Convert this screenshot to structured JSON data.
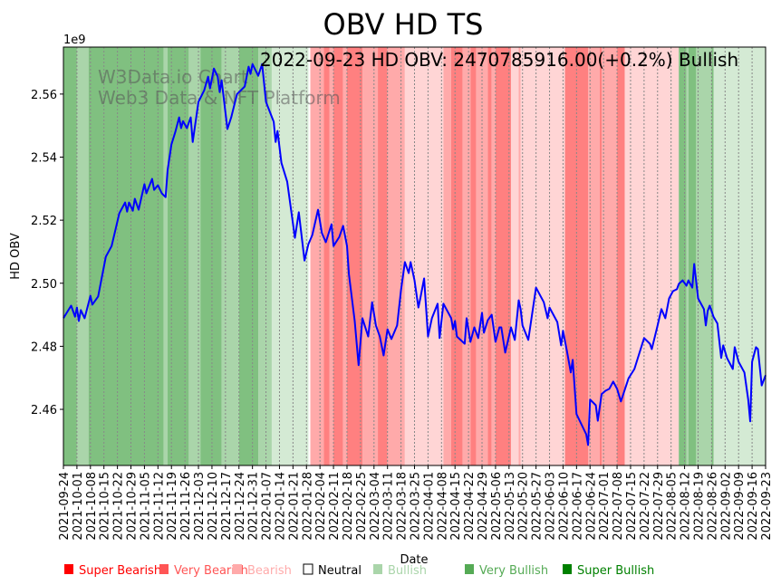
{
  "chart_data": {
    "type": "line",
    "title": "OBV HD TS",
    "annotation": "2022-09-23 HD OBV: 2470785916.00(+0.2%) Bullish",
    "watermark": [
      "W3Data.io Chart",
      "Web3 Data & NFT Platform"
    ],
    "xlabel": "Date",
    "ylabel": "HD OBV",
    "y_scale_label": "1e9",
    "x_unit": "days since 2021-09-24",
    "xlim": [
      0,
      364
    ],
    "ylim": [
      2.4422,
      2.5749
    ],
    "yticks": [
      2.46,
      2.48,
      2.5,
      2.52,
      2.54,
      2.56
    ],
    "ytick_labels": [
      "2.46",
      "2.48",
      "2.50",
      "2.52",
      "2.54",
      "2.56"
    ],
    "xtick_interval_days": 7,
    "xtick_labels": [
      "2021-09-24",
      "2021-10-01",
      "2021-10-08",
      "2021-10-15",
      "2021-10-22",
      "2021-10-29",
      "2021-11-05",
      "2021-11-12",
      "2021-11-19",
      "2021-11-26",
      "2021-12-03",
      "2021-12-10",
      "2021-12-17",
      "2021-12-24",
      "2021-12-31",
      "2022-01-07",
      "2022-01-14",
      "2022-01-21",
      "2022-01-28",
      "2022-02-04",
      "2022-02-11",
      "2022-02-18",
      "2022-02-25",
      "2022-03-04",
      "2022-03-11",
      "2022-03-18",
      "2022-03-25",
      "2022-04-01",
      "2022-04-08",
      "2022-04-15",
      "2022-04-22",
      "2022-04-29",
      "2022-05-06",
      "2022-05-13",
      "2022-05-20",
      "2022-05-27",
      "2022-06-03",
      "2022-06-10",
      "2022-06-17",
      "2022-06-24",
      "2022-07-01",
      "2022-07-08",
      "2022-07-15",
      "2022-07-22",
      "2022-07-29",
      "2022-08-05",
      "2022-08-12",
      "2022-08-19",
      "2022-08-26",
      "2022-09-02",
      "2022-09-09",
      "2022-09-16",
      "2022-09-23"
    ],
    "grid": "vertical-dotted",
    "series": [
      {
        "name": "HD OBV",
        "color": "#0000ff",
        "x": [
          0,
          4,
          6,
          7,
          8,
          9,
          11,
          14,
          15,
          18,
          22,
          25,
          29,
          32,
          33,
          34,
          36,
          37,
          39,
          42,
          43,
          46,
          47,
          49,
          51,
          53,
          54,
          56,
          58,
          60,
          61,
          62,
          64,
          66,
          67,
          70,
          73,
          75,
          76,
          78,
          80,
          81,
          82,
          85,
          87,
          90,
          94,
          96,
          97,
          98,
          101,
          103,
          105,
          109,
          110,
          111,
          113,
          116,
          120,
          122,
          125,
          127,
          129,
          132,
          134,
          136,
          139,
          140,
          143,
          145,
          147,
          148,
          151,
          153,
          155,
          158,
          160,
          162,
          164,
          166,
          168,
          170,
          173,
          175,
          177,
          179,
          180,
          182,
          184,
          185,
          187,
          189,
          191,
          194,
          195,
          197,
          201,
          202,
          203,
          204,
          208,
          209,
          211,
          213,
          215,
          217,
          218,
          220,
          222,
          224,
          226,
          227,
          229,
          232,
          234,
          236,
          237,
          238,
          241,
          245,
          249,
          251,
          252,
          256,
          258,
          259,
          261,
          263,
          264,
          266,
          271,
          272,
          273,
          276,
          277,
          279,
          281,
          283,
          285,
          287,
          289,
          293,
          296,
          301,
          304,
          305,
          308,
          310,
          312,
          314,
          316,
          318,
          319,
          321,
          323,
          324,
          326,
          327,
          329,
          332,
          333,
          334,
          335,
          337,
          339,
          341,
          342,
          344,
          347,
          348,
          350,
          353,
          355,
          356,
          357,
          359,
          360,
          362,
          364
        ],
        "y": [
          2.4889,
          2.4929,
          2.4894,
          2.4923,
          2.488,
          2.4915,
          2.4889,
          2.496,
          2.4932,
          2.4958,
          2.5084,
          2.5118,
          2.5222,
          2.5256,
          2.5227,
          2.5256,
          2.523,
          2.5268,
          2.5233,
          2.5314,
          2.5285,
          2.5331,
          2.5296,
          2.5311,
          2.5285,
          2.5273,
          2.5359,
          2.544,
          2.548,
          2.5526,
          2.5492,
          2.5514,
          2.5492,
          2.5526,
          2.5448,
          2.5575,
          2.5612,
          2.5655,
          2.5618,
          2.5681,
          2.5655,
          2.5606,
          2.5644,
          2.5489,
          2.5526,
          2.56,
          2.5624,
          2.5687,
          2.5664,
          2.5695,
          2.5658,
          2.5695,
          2.5575,
          2.5512,
          2.5448,
          2.5483,
          2.5382,
          2.5322,
          2.5144,
          2.5225,
          2.5072,
          2.5124,
          2.5153,
          2.5233,
          2.5159,
          2.513,
          2.5187,
          2.5118,
          2.5147,
          2.5182,
          2.5118,
          2.5029,
          2.488,
          2.474,
          2.4889,
          2.4831,
          2.494,
          2.4866,
          2.4831,
          2.4771,
          2.4854,
          2.4823,
          2.4866,
          2.4978,
          2.5067,
          2.5032,
          2.5067,
          2.5009,
          2.4923,
          2.4952,
          2.5015,
          2.4831,
          2.4889,
          2.4935,
          2.4826,
          2.4935,
          2.4889,
          2.4854,
          2.488,
          2.4831,
          2.4808,
          2.4889,
          2.4814,
          2.486,
          2.4826,
          2.4906,
          2.4843,
          2.4883,
          2.49,
          2.4814,
          2.486,
          2.486,
          2.478,
          2.486,
          2.482,
          2.4946,
          2.4918,
          2.4866,
          2.482,
          2.4986,
          2.494,
          2.4889,
          2.4923,
          2.4877,
          2.4803,
          2.4849,
          2.4785,
          2.4717,
          2.4757,
          2.4585,
          2.4521,
          2.4487,
          2.4631,
          2.4613,
          2.4564,
          2.4648,
          2.4659,
          2.4665,
          2.4688,
          2.4665,
          2.4625,
          2.4699,
          2.4728,
          2.4826,
          2.4808,
          2.4791,
          2.4866,
          2.4918,
          2.4889,
          2.4952,
          2.4975,
          2.4981,
          2.4998,
          2.5009,
          2.4992,
          2.5009,
          2.4986,
          2.5061,
          2.4952,
          2.4918,
          2.4866,
          2.4912,
          2.4929,
          2.4894,
          2.4872,
          2.4763,
          2.4803,
          2.4763,
          2.4728,
          2.4797,
          2.4751,
          2.4717,
          2.4631,
          2.4562,
          2.4751,
          2.4797,
          2.4791,
          2.4676,
          2.4708
        ]
      }
    ],
    "sentiment_bands": [
      [
        0,
        7,
        "super_bullish"
      ],
      [
        7,
        13,
        "very_bullish"
      ],
      [
        13,
        52,
        "super_bullish"
      ],
      [
        52,
        54,
        "very_bullish"
      ],
      [
        54,
        65,
        "super_bullish"
      ],
      [
        65,
        71,
        "very_bullish"
      ],
      [
        71,
        82,
        "super_bullish"
      ],
      [
        82,
        91,
        "very_bullish"
      ],
      [
        91,
        101,
        "super_bullish"
      ],
      [
        101,
        108,
        "very_bullish"
      ],
      [
        108,
        127,
        "bullish"
      ],
      [
        128,
        135,
        "very_bearish"
      ],
      [
        135,
        138,
        "super_bearish"
      ],
      [
        138,
        140,
        "very_bearish"
      ],
      [
        140,
        145,
        "super_bearish"
      ],
      [
        145,
        147,
        "very_bearish"
      ],
      [
        147,
        155,
        "super_bearish"
      ],
      [
        155,
        163,
        "very_bearish"
      ],
      [
        163,
        168,
        "super_bearish"
      ],
      [
        168,
        177,
        "very_bearish"
      ],
      [
        177,
        197,
        "bearish"
      ],
      [
        197,
        201,
        "very_bearish"
      ],
      [
        201,
        207,
        "super_bearish"
      ],
      [
        207,
        211,
        "very_bearish"
      ],
      [
        211,
        214,
        "super_bearish"
      ],
      [
        214,
        220,
        "very_bearish"
      ],
      [
        220,
        222,
        "super_bearish"
      ],
      [
        222,
        224,
        "very_bearish"
      ],
      [
        224,
        232,
        "super_bearish"
      ],
      [
        232,
        236,
        "bearish"
      ],
      [
        236,
        237,
        "very_bearish"
      ],
      [
        237,
        260,
        "bearish"
      ],
      [
        260,
        272,
        "super_bearish"
      ],
      [
        272,
        278,
        "very_bearish"
      ],
      [
        278,
        279,
        "super_bearish"
      ],
      [
        279,
        287,
        "very_bearish"
      ],
      [
        287,
        291,
        "super_bearish"
      ],
      [
        291,
        319,
        "bearish"
      ],
      [
        319,
        323,
        "super_bullish"
      ],
      [
        323,
        324,
        "very_bullish"
      ],
      [
        324,
        328,
        "super_bullish"
      ],
      [
        328,
        336,
        "very_bullish"
      ],
      [
        336,
        337,
        "super_bullish"
      ],
      [
        337,
        364,
        "bullish"
      ]
    ],
    "band_colors": {
      "super_bullish": "#80c080",
      "very_bullish": "#aad5aa",
      "bullish": "#d4ead4",
      "super_bearish": "#ff8080",
      "very_bearish": "#ffaaaa",
      "bearish": "#ffd5d5"
    },
    "legend": {
      "placement": "bottom",
      "items": [
        {
          "label": "Super Bearish",
          "color": "#ff0000"
        },
        {
          "label": "Very Bearish",
          "color": "#ff5555"
        },
        {
          "label": "Bearish",
          "color": "#ffaaaa"
        },
        {
          "label": "Neutral",
          "color": "#ffffff",
          "text_color": "#000000"
        },
        {
          "label": "Bullish",
          "color": "#aad5aa"
        },
        {
          "label": "Very Bullish",
          "color": "#55aa55"
        },
        {
          "label": "Super Bullish",
          "color": "#008000"
        }
      ]
    }
  }
}
